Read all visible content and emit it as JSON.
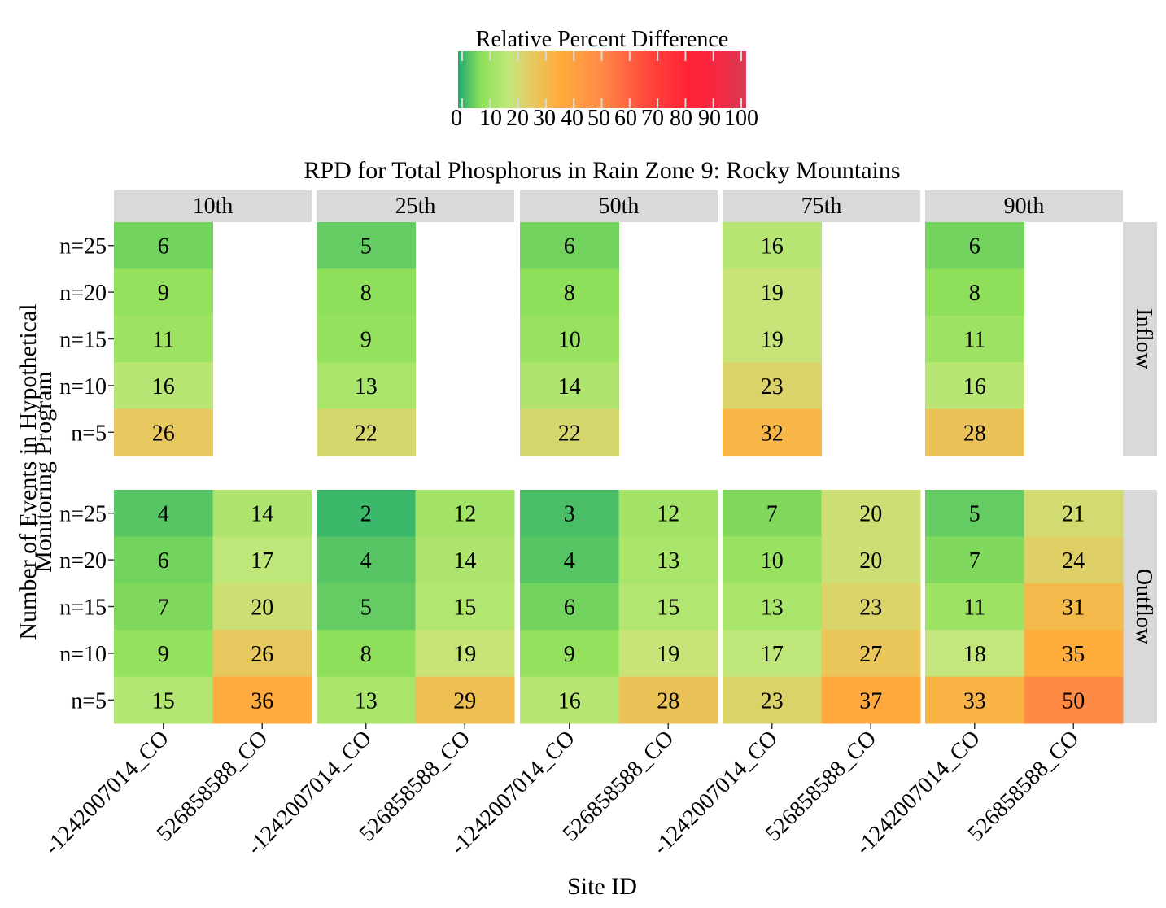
{
  "chart_data": {
    "type": "heatmap",
    "title": "RPD for Total Phosphorus in Rain Zone 9: Rocky Mountains",
    "xlabel": "Site ID",
    "ylabel_lines": [
      "Number of Events in Hypothetical",
      "Monitoring Program"
    ],
    "legend": {
      "title": "Relative Percent Difference",
      "placement": "top-center",
      "ticks": [
        0,
        10,
        20,
        30,
        40,
        50,
        60,
        70,
        80,
        90,
        100
      ],
      "range": [
        0,
        100
      ],
      "color_stops": [
        {
          "value": 0,
          "color": "#1faa6e"
        },
        {
          "value": 8,
          "color": "#8ee05a"
        },
        {
          "value": 18,
          "color": "#c3e77c"
        },
        {
          "value": 25,
          "color": "#e3cb62"
        },
        {
          "value": 35,
          "color": "#ffad3c"
        },
        {
          "value": 50,
          "color": "#ff8a46"
        },
        {
          "value": 65,
          "color": "#ff4a3c"
        },
        {
          "value": 80,
          "color": "#ff2236"
        },
        {
          "value": 90,
          "color": "#f62842"
        },
        {
          "value": 100,
          "color": "#d63a55"
        }
      ]
    },
    "col_facets": [
      "10th",
      "25th",
      "50th",
      "75th",
      "90th"
    ],
    "row_facets": [
      "Inflow",
      "Outflow"
    ],
    "sites": [
      "-1242007014_CO",
      "526858588_CO"
    ],
    "n_levels": [
      "n=25",
      "n=20",
      "n=15",
      "n=10",
      "n=5"
    ],
    "cells": {
      "Inflow": {
        "10th": {
          "-1242007014_CO": [
            6,
            9,
            11,
            16,
            26
          ],
          "526858588_CO": null
        },
        "25th": {
          "-1242007014_CO": [
            5,
            8,
            9,
            13,
            22
          ],
          "526858588_CO": null
        },
        "50th": {
          "-1242007014_CO": [
            6,
            8,
            10,
            14,
            22
          ],
          "526858588_CO": null
        },
        "75th": {
          "-1242007014_CO": [
            16,
            19,
            19,
            23,
            32
          ],
          "526858588_CO": null
        },
        "90th": {
          "-1242007014_CO": [
            6,
            8,
            11,
            16,
            28
          ],
          "526858588_CO": null
        }
      },
      "Outflow": {
        "10th": {
          "-1242007014_CO": [
            4,
            6,
            7,
            9,
            15
          ],
          "526858588_CO": [
            14,
            17,
            20,
            26,
            36
          ]
        },
        "25th": {
          "-1242007014_CO": [
            2,
            4,
            5,
            8,
            13
          ],
          "526858588_CO": [
            12,
            14,
            15,
            19,
            29
          ]
        },
        "50th": {
          "-1242007014_CO": [
            3,
            4,
            6,
            9,
            16
          ],
          "526858588_CO": [
            12,
            13,
            15,
            19,
            28
          ]
        },
        "75th": {
          "-1242007014_CO": [
            7,
            10,
            13,
            17,
            23
          ],
          "526858588_CO": [
            20,
            20,
            23,
            27,
            37
          ]
        },
        "90th": {
          "-1242007014_CO": [
            5,
            7,
            11,
            18,
            33
          ],
          "526858588_CO": [
            21,
            24,
            31,
            35,
            50
          ]
        }
      }
    },
    "colors": {
      "strip_background": "#d9d9d9",
      "text": "#000000"
    }
  }
}
